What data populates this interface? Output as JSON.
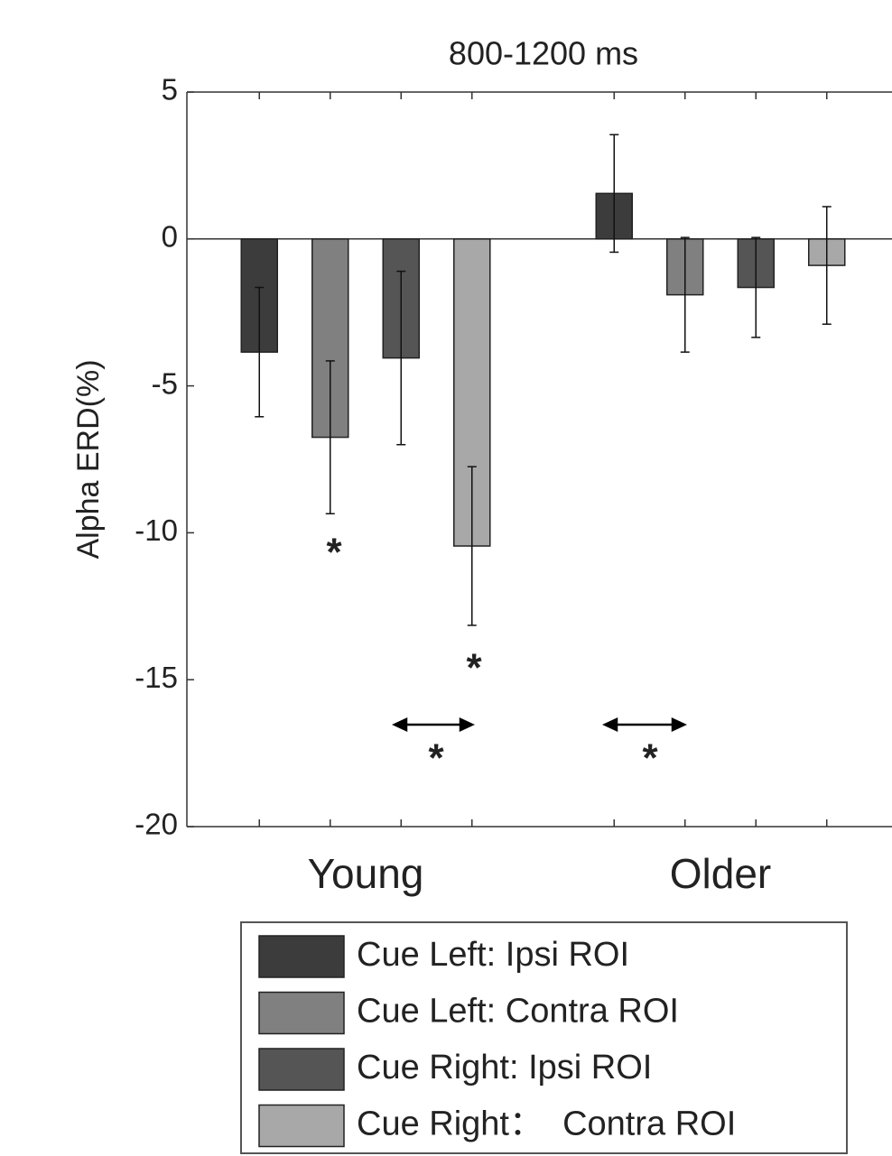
{
  "chart_data": {
    "type": "bar",
    "title": "800-1200 ms",
    "y_label": "Alpha ERD(%)",
    "categories": [
      "Young",
      "Older"
    ],
    "series": [
      {
        "name": "Cue Left: Ipsi ROI",
        "color": "#3c3c3c",
        "values": [
          -3.85,
          1.55
        ],
        "errors": [
          2.2,
          2.0
        ]
      },
      {
        "name": "Cue Left: Contra ROI",
        "color": "#808080",
        "values": [
          -6.75,
          -1.9
        ],
        "errors": [
          2.6,
          1.95
        ]
      },
      {
        "name": "Cue Right: Ipsi ROI",
        "color": "#555555",
        "values": [
          -4.05,
          -1.65
        ],
        "errors": [
          2.95,
          1.7
        ]
      },
      {
        "name": "Cue Right：  Contra ROI",
        "color": "#a8a8a8",
        "values": [
          -10.45,
          -0.9
        ],
        "errors": [
          2.7,
          2.0
        ]
      }
    ],
    "ylim": [
      -20,
      5
    ],
    "yticks": [
      5,
      0,
      -5,
      -10,
      -15,
      -20
    ],
    "annotations": [
      "*",
      "*",
      "*",
      "*"
    ]
  }
}
